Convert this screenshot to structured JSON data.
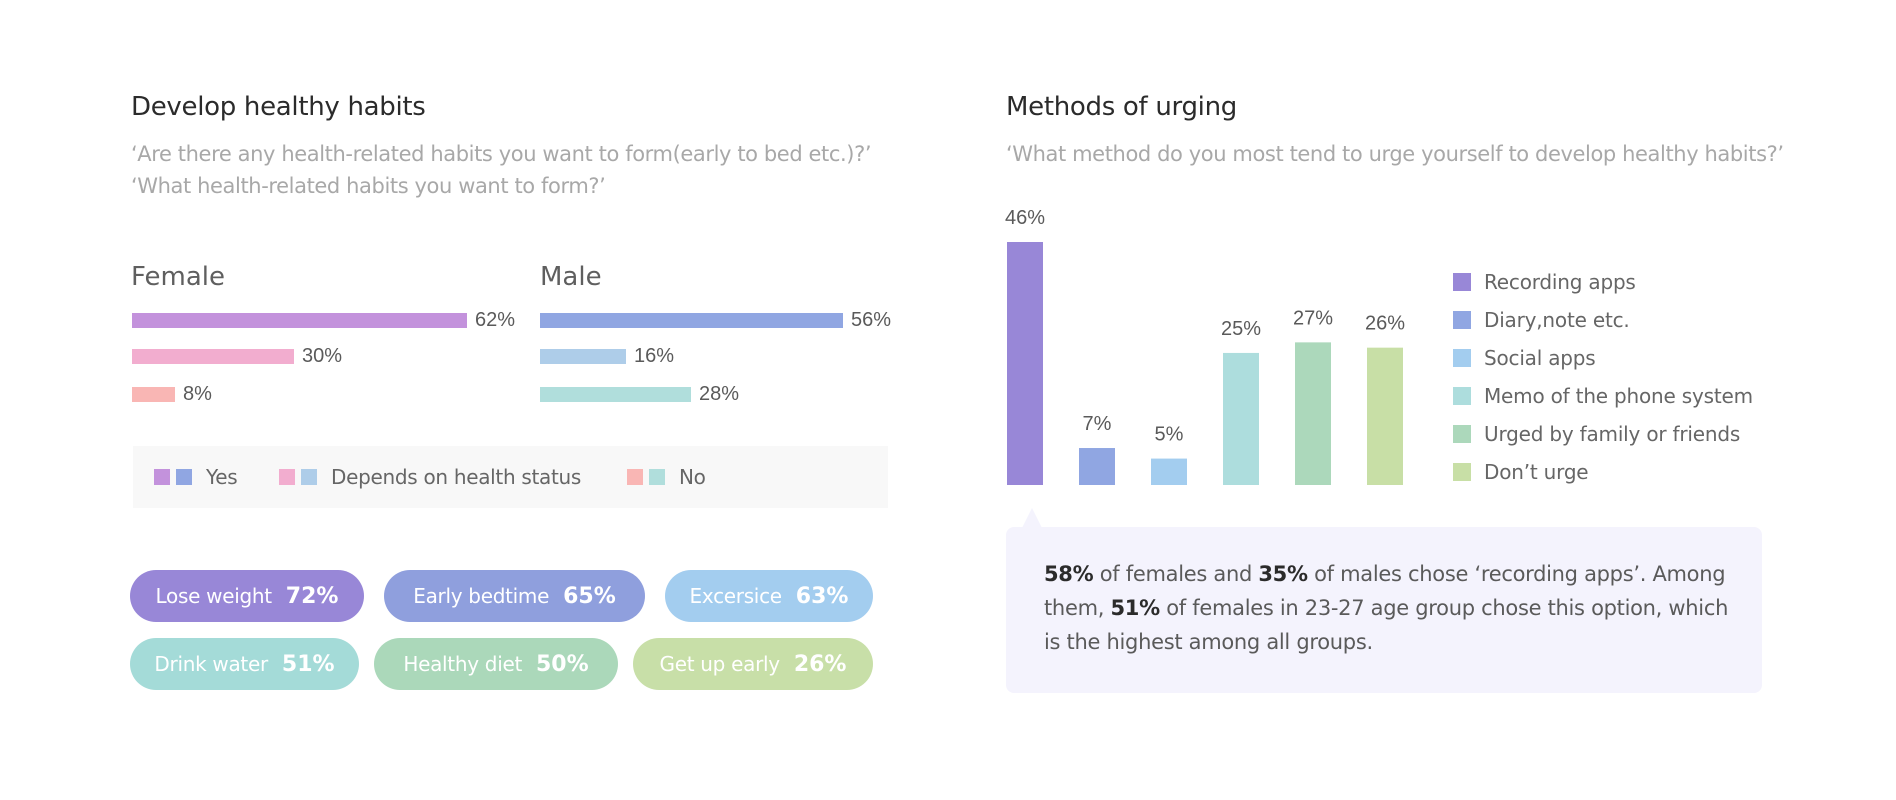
{
  "left_panel": {
    "title": "Develop healthy habits",
    "subtitle_lines": [
      "‘Are there any health-related habits you want to form(early to bed etc.)?’",
      "‘What health-related habits you want to form?’"
    ],
    "female": {
      "label": "Female",
      "bars": [
        {
          "category": "Yes",
          "value": 62,
          "label": "62%",
          "color": "#c392dc"
        },
        {
          "category": "Depends on health status",
          "value": 30,
          "label": "30%",
          "color": "#f2adcf"
        },
        {
          "category": "No",
          "value": 8,
          "label": "8%",
          "color": "#f9b6b4"
        }
      ]
    },
    "male": {
      "label": "Male",
      "bars": [
        {
          "category": "Yes",
          "value": 56,
          "label": "56%",
          "color": "#90a6e2"
        },
        {
          "category": "Depends on health status",
          "value": 16,
          "label": "16%",
          "color": "#aecde9"
        },
        {
          "category": "No",
          "value": 28,
          "label": "28%",
          "color": "#b0dedc"
        }
      ]
    },
    "legend": [
      {
        "label": "Yes",
        "colors": [
          "#c392dc",
          "#90a6e2"
        ]
      },
      {
        "label": "Depends on health status",
        "colors": [
          "#f2adcf",
          "#aecde9"
        ]
      },
      {
        "label": "No",
        "colors": [
          "#f9b6b4",
          "#b0dedc"
        ]
      }
    ],
    "habits": [
      {
        "label": "Lose weight",
        "value": "72%",
        "color": "#9887d7"
      },
      {
        "label": "Early bedtime",
        "value": "65%",
        "color": "#8f9fdd"
      },
      {
        "label": "Excersice",
        "value": "63%",
        "color": "#a3cdef"
      },
      {
        "label": "Drink water",
        "value": "51%",
        "color": "#a4dbd8"
      },
      {
        "label": "Healthy diet",
        "value": "50%",
        "color": "#abd8ba"
      },
      {
        "label": "Get up early",
        "value": "26%",
        "color": "#c8dfa8"
      }
    ]
  },
  "right_panel": {
    "title": "Methods of urging",
    "subtitle": "‘What method do you most tend to urge yourself to develop healthy habits?’",
    "callout": {
      "parts": [
        {
          "text": "58%",
          "bold": true
        },
        {
          "text": " of females and ",
          "bold": false
        },
        {
          "text": "35%",
          "bold": true
        },
        {
          "text": " of males chose ‘recording apps’. Among them, ",
          "bold": false
        },
        {
          "text": "51%",
          "bold": true
        },
        {
          "text": " of females in 23-27 age group chose this option, which is the highest among all groups.",
          "bold": false
        }
      ]
    }
  },
  "chart_data": [
    {
      "type": "bar",
      "orientation": "horizontal",
      "title": "Female",
      "categories": [
        "Yes",
        "Depends on health status",
        "No"
      ],
      "values": [
        62,
        30,
        8
      ],
      "unit": "%"
    },
    {
      "type": "bar",
      "orientation": "horizontal",
      "title": "Male",
      "categories": [
        "Yes",
        "Depends on health status",
        "No"
      ],
      "values": [
        56,
        16,
        28
      ],
      "unit": "%"
    },
    {
      "type": "bar",
      "orientation": "vertical",
      "title": "Methods of urging",
      "categories": [
        "Recording apps",
        "Diary,note etc.",
        "Social apps",
        "Memo of the phone system",
        "Urged by family or friends",
        "Don’t urge"
      ],
      "values": [
        46,
        7,
        5,
        25,
        27,
        26
      ],
      "labels": [
        "46%",
        "7%",
        "5%",
        "25%",
        "27%",
        "26%"
      ],
      "colors": [
        "#9887d7",
        "#90a6e2",
        "#a3cdef",
        "#addddd",
        "#acd8bb",
        "#c8dfa6"
      ],
      "unit": "%",
      "legend_position": "right",
      "grid": false
    }
  ]
}
